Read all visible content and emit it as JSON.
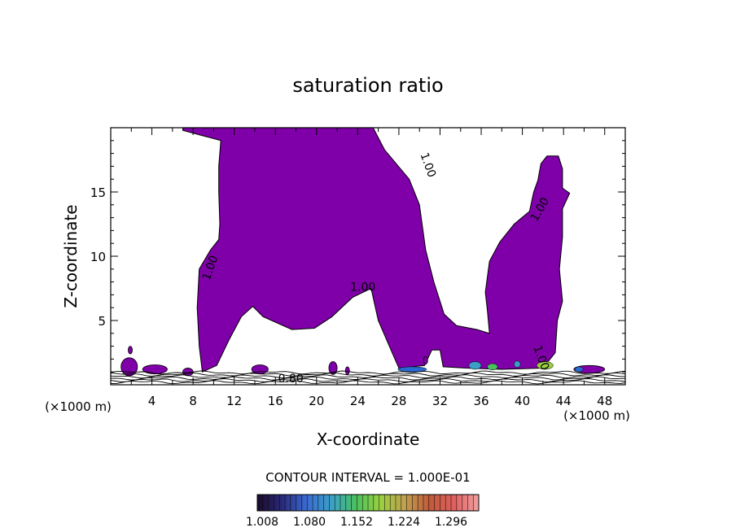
{
  "chart_data": {
    "type": "contour",
    "title": "saturation ratio",
    "xlabel": "X-coordinate",
    "ylabel": "Z-coordinate",
    "x_unit_left": "(×1000 m)",
    "x_unit_right": "(×1000 m)",
    "xlim": [
      0,
      50
    ],
    "ylim": [
      0,
      20
    ],
    "x_ticks": [
      4,
      8,
      12,
      16,
      20,
      24,
      28,
      32,
      36,
      40,
      44,
      48
    ],
    "y_ticks": [
      5,
      10,
      15
    ],
    "contour_interval_text": "CONTOUR INTERVAL = 1.000E-01",
    "colorbar": {
      "labels": [
        "1.008",
        "1.080",
        "1.152",
        "1.224",
        "1.296"
      ],
      "colors": [
        "#1a0a2a",
        "#2a2a7a",
        "#3a6ad0",
        "#3aa0c8",
        "#4ac060",
        "#9ad040",
        "#c0a050",
        "#c05a3a",
        "#e06060",
        "#f0a0a0"
      ]
    },
    "contour_labels": [
      {
        "text": "1.00",
        "x": 10,
        "z": 9
      },
      {
        "text": "1.00",
        "x": 24.5,
        "z": 7.3
      },
      {
        "text": "1.00",
        "x": 30.5,
        "z": 17
      },
      {
        "text": "1.00",
        "x": 42,
        "z": 13.5
      },
      {
        "text": "1.00",
        "x": 41.5,
        "z": 2
      },
      {
        "text": "0.80",
        "x": 17.5,
        "z": 0.2
      }
    ],
    "regions": {
      "main_plume": [
        [
          7,
          20
        ],
        [
          11,
          20
        ],
        [
          16.5,
          20
        ],
        [
          25.5,
          20
        ],
        [
          26.6,
          18.3
        ],
        [
          29,
          16
        ],
        [
          30,
          14
        ],
        [
          30.6,
          10.5
        ],
        [
          31.4,
          8
        ],
        [
          32.4,
          5.5
        ],
        [
          33.6,
          4.6
        ],
        [
          35.6,
          4.3
        ],
        [
          36.8,
          4.0
        ],
        [
          36.6,
          5.8
        ],
        [
          36.4,
          7.2
        ],
        [
          36.8,
          9.6
        ],
        [
          37.8,
          11.1
        ],
        [
          39.2,
          12.5
        ],
        [
          40.7,
          13.5
        ],
        [
          41.1,
          15
        ],
        [
          41.5,
          15.9
        ],
        [
          41.8,
          17.2
        ],
        [
          42.4,
          17.8
        ],
        [
          43.5,
          17.8
        ],
        [
          43.9,
          16.8
        ],
        [
          43.9,
          15.3
        ],
        [
          44.6,
          14.9
        ],
        [
          43.9,
          13.7
        ],
        [
          43.9,
          11.5
        ],
        [
          43.6,
          9
        ],
        [
          43.9,
          6.5
        ],
        [
          43.4,
          5.0
        ],
        [
          43.2,
          2.5
        ],
        [
          42,
          1.3
        ],
        [
          38,
          1.2
        ],
        [
          34.5,
          1.3
        ],
        [
          32.3,
          1.4
        ],
        [
          32,
          2.7
        ],
        [
          31.2,
          2.7
        ],
        [
          30.5,
          1.5
        ],
        [
          28,
          1.3
        ],
        [
          27.4,
          2.4
        ],
        [
          26,
          5.0
        ],
        [
          25.3,
          7.5
        ],
        [
          23.5,
          6.8
        ],
        [
          21.5,
          5.3
        ],
        [
          19.8,
          4.4
        ],
        [
          17.6,
          4.3
        ],
        [
          14.8,
          5.3
        ],
        [
          13.8,
          6.1
        ],
        [
          12.7,
          5.3
        ],
        [
          11.5,
          3.5
        ],
        [
          10.3,
          1.5
        ],
        [
          8.9,
          1.0
        ],
        [
          8.6,
          3
        ],
        [
          8.4,
          6
        ],
        [
          8.6,
          9
        ],
        [
          9.7,
          10.5
        ],
        [
          10.5,
          11.3
        ],
        [
          10.6,
          12.5
        ],
        [
          10.5,
          15
        ],
        [
          10.5,
          17
        ],
        [
          10.7,
          19
        ],
        [
          7,
          19.8
        ]
      ],
      "small_patches": [
        {
          "x": 1.8,
          "z": 1.4,
          "rx": 0.8,
          "rz": 0.7
        },
        {
          "x": 1.9,
          "z": 2.7,
          "rx": 0.2,
          "rz": 0.3
        },
        {
          "x": 4.3,
          "z": 1.2,
          "rx": 1.2,
          "rz": 0.35
        },
        {
          "x": 7.5,
          "z": 1.0,
          "rx": 0.5,
          "rz": 0.3
        },
        {
          "x": 14.5,
          "z": 1.2,
          "rx": 0.8,
          "rz": 0.35
        },
        {
          "x": 21.6,
          "z": 1.3,
          "rx": 0.4,
          "rz": 0.5
        },
        {
          "x": 23,
          "z": 1.1,
          "rx": 0.2,
          "rz": 0.3
        },
        {
          "x": 30.6,
          "z": 1.9,
          "rx": 0.2,
          "rz": 0.3
        },
        {
          "x": 46.5,
          "z": 1.2,
          "rx": 1.5,
          "rz": 0.3
        }
      ],
      "high_patches": [
        {
          "x": 35.4,
          "z": 1.5,
          "rx": 0.6,
          "rz": 0.3,
          "color": "#3aa0c8"
        },
        {
          "x": 37.1,
          "z": 1.4,
          "rx": 0.5,
          "rz": 0.25,
          "color": "#4ac060"
        },
        {
          "x": 39.5,
          "z": 1.6,
          "rx": 0.3,
          "rz": 0.25,
          "color": "#3aa0c8"
        },
        {
          "x": 42.2,
          "z": 1.5,
          "rx": 0.8,
          "rz": 0.3,
          "color": "#9ad040"
        },
        {
          "x": 29.3,
          "z": 1.2,
          "rx": 1.4,
          "rz": 0.2,
          "color": "#2a6ad0"
        },
        {
          "x": 45.5,
          "z": 1.2,
          "rx": 0.4,
          "rz": 0.2,
          "color": "#2a6ad0"
        }
      ]
    }
  }
}
